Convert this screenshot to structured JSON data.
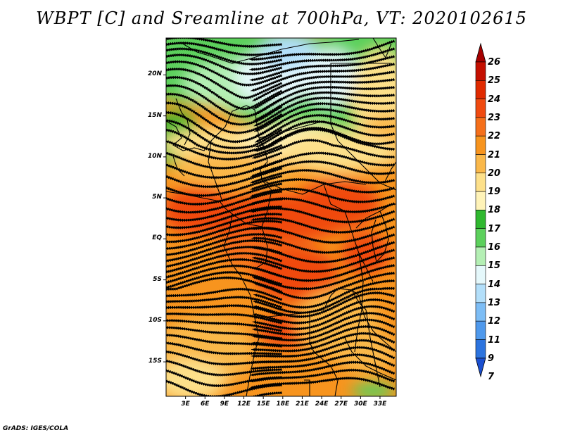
{
  "title": "WBPT [C] and Sreamline at 700hPa, VT: 2020102615",
  "credit": "GrADS: IGES/COLA",
  "lat_labels": [
    "20N",
    "15N",
    "10N",
    "5N",
    "EQ",
    "5S",
    "10S",
    "15S"
  ],
  "lat_values": [
    20,
    15,
    10,
    5,
    0,
    -5,
    -10,
    -15
  ],
  "lon_labels": [
    "3E",
    "6E",
    "9E",
    "12E",
    "15E",
    "18E",
    "21E",
    "24E",
    "27E",
    "30E",
    "33E"
  ],
  "lon_values": [
    3,
    6,
    9,
    12,
    15,
    18,
    21,
    24,
    27,
    30,
    33
  ],
  "colorbar": {
    "labels": [
      "26",
      "25",
      "24",
      "23",
      "22",
      "21",
      "20",
      "19",
      "18",
      "17",
      "16",
      "15",
      "14",
      "13",
      "12",
      "11",
      "9",
      "7"
    ],
    "colors": [
      "#a50000",
      "#c40f00",
      "#e02a00",
      "#f04a10",
      "#f56f1a",
      "#f7941e",
      "#fab84a",
      "#fde08a",
      "#fff3b8",
      "#2fb82f",
      "#5cd05c",
      "#b4efb4",
      "#e5f8fb",
      "#b3dffa",
      "#7dbdf5",
      "#4f99ec",
      "#2c73de",
      "#1a4fd0"
    ]
  },
  "map": {
    "lon_range": [
      0,
      35.5
    ],
    "lat_range": [
      -19.2,
      24.5
    ]
  }
}
